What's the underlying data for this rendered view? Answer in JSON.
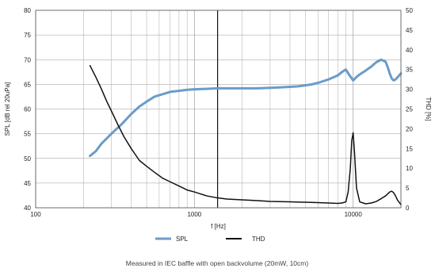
{
  "chart_data": {
    "type": "line",
    "xlabel": "f [Hz]",
    "ylabel_left": "SPL [dB rel 20uPa]",
    "ylabel_right": "THD [%]",
    "x_scale": "log",
    "xlim": [
      100,
      20000
    ],
    "ylim_left": [
      40,
      80
    ],
    "ylim_right": [
      0,
      50
    ],
    "x_tick_labels": [
      "100",
      "1000",
      "10000"
    ],
    "x_ticks": [
      100,
      1000,
      10000
    ],
    "y_left_ticks": [
      40,
      45,
      50,
      55,
      60,
      65,
      70,
      75,
      80
    ],
    "y_right_ticks": [
      0,
      5,
      10,
      15,
      20,
      25,
      30,
      35,
      40,
      45,
      50
    ],
    "grid": true,
    "marker_line_x": 1400,
    "legend_position": "bottom",
    "series": [
      {
        "name": "SPL",
        "color": "#6a9cc9",
        "axis": "left",
        "x": [
          220,
          240,
          260,
          300,
          350,
          400,
          450,
          500,
          560,
          630,
          710,
          800,
          900,
          1000,
          1200,
          1400,
          1600,
          2000,
          2500,
          3000,
          3500,
          4000,
          4500,
          5000,
          5500,
          6000,
          7000,
          8000,
          8500,
          9000,
          9500,
          10000,
          10500,
          11000,
          12000,
          13000,
          14000,
          15000,
          16000,
          16500,
          17000,
          17500,
          18000,
          18500,
          19000,
          19500,
          20000
        ],
        "y": [
          50.5,
          51.5,
          53,
          55,
          57,
          59,
          60.5,
          61.5,
          62.5,
          63,
          63.5,
          63.7,
          63.9,
          64.0,
          64.1,
          64.2,
          64.2,
          64.2,
          64.2,
          64.3,
          64.4,
          64.5,
          64.6,
          64.8,
          65.0,
          65.3,
          66.0,
          66.8,
          67.5,
          68.0,
          66.8,
          65.8,
          66.5,
          67.0,
          67.8,
          68.6,
          69.5,
          70.0,
          69.6,
          68.5,
          67.2,
          66.2,
          65.8,
          66.0,
          66.4,
          66.8,
          67.2
        ]
      },
      {
        "name": "THD",
        "color": "#111111",
        "axis": "right",
        "x": [
          220,
          240,
          260,
          280,
          300,
          330,
          360,
          400,
          450,
          500,
          560,
          630,
          710,
          800,
          900,
          1000,
          1200,
          1400,
          1600,
          2000,
          2500,
          3000,
          4000,
          5000,
          6000,
          7000,
          8000,
          8500,
          9000,
          9300,
          9600,
          9800,
          10000,
          10200,
          10500,
          11000,
          12000,
          13000,
          14000,
          15000,
          16000,
          17000,
          17500,
          18000,
          18500,
          19000,
          20000
        ],
        "y": [
          36,
          33,
          30,
          27,
          24.5,
          21,
          18,
          15,
          12,
          10.5,
          9,
          7.5,
          6.5,
          5.5,
          4.5,
          4,
          3,
          2.5,
          2.2,
          2.0,
          1.8,
          1.6,
          1.5,
          1.4,
          1.3,
          1.2,
          1.1,
          1.2,
          1.5,
          4,
          10,
          17,
          19,
          14,
          5,
          1.5,
          1.0,
          1.2,
          1.6,
          2.3,
          3.0,
          4.0,
          4.2,
          3.8,
          3.0,
          2.0,
          0.8
        ]
      }
    ]
  },
  "caption": "Measured in IEC baffle with open backvolume (20mW, 10cm)"
}
